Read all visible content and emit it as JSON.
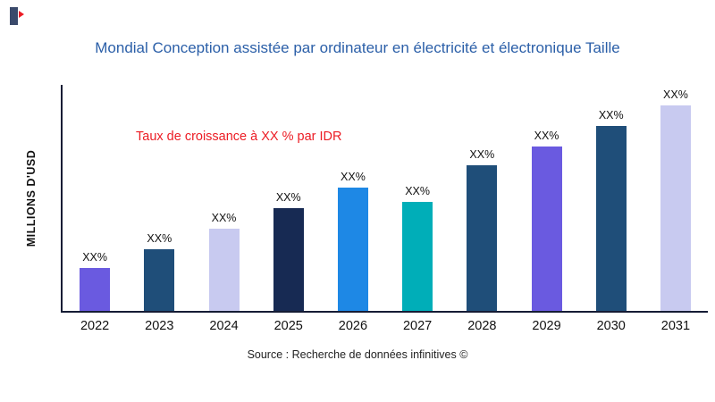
{
  "page": {
    "title": "Mondial Conception assistée par ordinateur en électricité et électronique Taille",
    "source": "Source : Recherche de données infinitives ©"
  },
  "colors": {
    "title_text": "#2b5fa8",
    "annotation_text": "#ec1c24",
    "axis": "#151c35"
  },
  "chart_data": {
    "type": "bar",
    "title": "Mondial Conception assistée par ordinateur en électricité et électronique Taille",
    "xlabel": "",
    "ylabel": "MILLIONS D'USD",
    "annotation": "Taux de croissance à XX % par IDR",
    "legend_position": "none",
    "grid": false,
    "ylim": [
      0,
      100
    ],
    "categories": [
      "2022",
      "2023",
      "2024",
      "2025",
      "2026",
      "2027",
      "2028",
      "2029",
      "2030",
      "2031"
    ],
    "values": [
      21,
      30,
      40,
      50,
      60,
      53,
      71,
      80,
      90,
      100
    ],
    "bar_labels": [
      "XX%",
      "XX%",
      "XX%",
      "XX%",
      "XX%",
      "XX%",
      "XX%",
      "XX%",
      "XX%",
      "XX%"
    ],
    "bar_colors": [
      "#6a5ae0",
      "#1f4e79",
      "#c8caf0",
      "#172a53",
      "#1e88e5",
      "#00aeb8",
      "#1f4e79",
      "#6a5ae0",
      "#1f4e79",
      "#c8caf0"
    ]
  }
}
